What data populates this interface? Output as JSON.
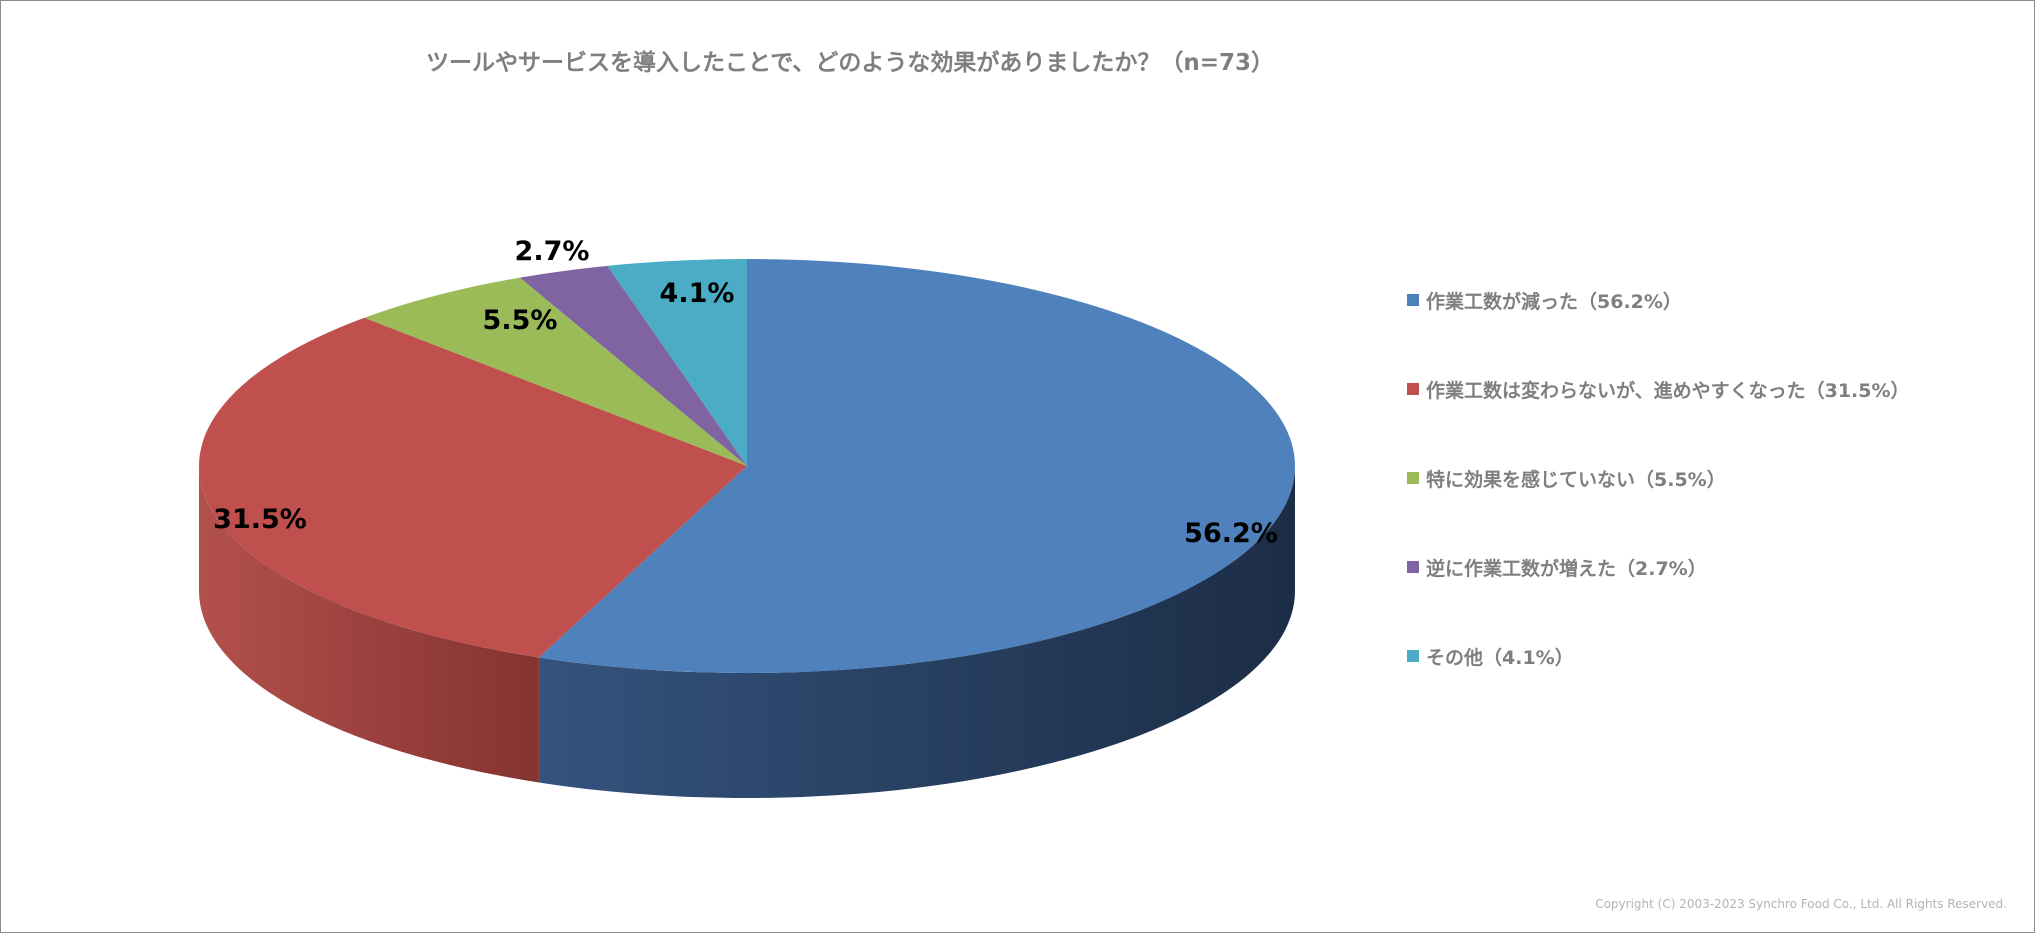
{
  "chart_data": {
    "type": "pie",
    "title": "ツールやサービスを導入したことで、どのような効果がありましたか？（n=73）",
    "unit": "%",
    "slices": [
      {
        "label": "作業工数が減った",
        "value": 56.2,
        "data_label": "56.2%",
        "legend": "作業工数が減った（56.2%）",
        "color": "#4f81bd",
        "side_color": "#1f3350"
      },
      {
        "label": "作業工数は変わらないが、進めやすくなった",
        "value": 31.5,
        "data_label": "31.5%",
        "legend": "作業工数は変わらないが、進めやすくなった（31.5%）",
        "color": "#c0504d",
        "side_color": "#8c3533"
      },
      {
        "label": "特に効果を感じていない",
        "value": 5.5,
        "data_label": "5.5%",
        "legend": "特に効果を感じていない（5.5%）",
        "color": "#9bbb59",
        "side_color": "#6f873c"
      },
      {
        "label": "逆に作業工数が増えた",
        "value": 2.7,
        "data_label": "2.7%",
        "legend": "逆に作業工数が増えた（2.7%）",
        "color": "#8064a2",
        "side_color": "#5a4574"
      },
      {
        "label": "その他",
        "value": 4.1,
        "data_label": "4.1%",
        "legend": "その他（4.1%）",
        "color": "#4bacc6",
        "side_color": "#327a8e"
      }
    ],
    "legend_position": "right",
    "style": "3d-pie"
  },
  "footer": {
    "copyright": "Copyright (C) 2003-2023   Synchro Food Co., Ltd. All Rights Reserved."
  }
}
